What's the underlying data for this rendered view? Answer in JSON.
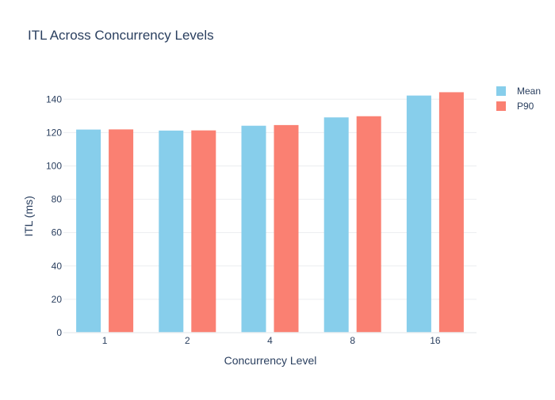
{
  "chart_data": {
    "type": "bar",
    "title": "ITL Across Concurrency Levels",
    "xlabel": "Concurrency Level",
    "ylabel": "ITL (ms)",
    "categories": [
      "1",
      "2",
      "4",
      "8",
      "16"
    ],
    "series": [
      {
        "name": "Mean",
        "values": [
          121.8,
          121.2,
          124.1,
          129.1,
          142.2
        ],
        "color": "#87CEEB"
      },
      {
        "name": "P90",
        "values": [
          121.9,
          121.3,
          124.5,
          129.8,
          144.2
        ],
        "color": "#FA8072"
      }
    ],
    "ylim": [
      0,
      152
    ],
    "yticks": [
      0,
      20,
      40,
      60,
      80,
      100,
      120,
      140
    ],
    "grid": true,
    "legend": "top-right"
  }
}
